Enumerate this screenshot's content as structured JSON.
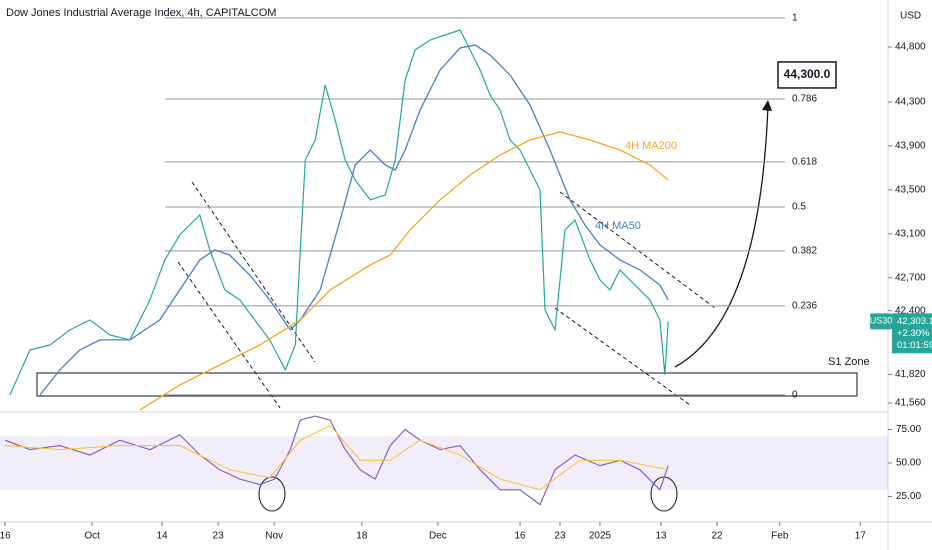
{
  "chart_data": {
    "type": "line",
    "title": "Dow Jones Industrial Average Index, 4h, CAPITALCOM",
    "currency": "USD",
    "xlim": [
      0,
      160
    ],
    "xticks": [
      {
        "value": 0.9,
        "label": "16"
      },
      {
        "value": 16.6,
        "label": "Oct"
      },
      {
        "value": 29.2,
        "label": "14"
      },
      {
        "value": 39.3,
        "label": "23"
      },
      {
        "value": 49.4,
        "label": "Nov"
      },
      {
        "value": 65.2,
        "label": "18"
      },
      {
        "value": 78.9,
        "label": "Dec"
      },
      {
        "value": 93.7,
        "label": "16"
      },
      {
        "value": 100.9,
        "label": "23"
      },
      {
        "value": 108.1,
        "label": "2025"
      },
      {
        "value": 119.1,
        "label": "13"
      },
      {
        "value": 129.2,
        "label": "22"
      },
      {
        "value": 140.5,
        "label": "Feb"
      },
      {
        "value": 155.0,
        "label": "17"
      }
    ],
    "ylim": [
      41496,
      45228
    ],
    "yticks": [
      {
        "value": 44800,
        "label": "44,800"
      },
      {
        "value": 44300,
        "label": "44,300"
      },
      {
        "value": 43900,
        "label": "43,900"
      },
      {
        "value": 43500,
        "label": "43,500"
      },
      {
        "value": 43100,
        "label": "43,100"
      },
      {
        "value": 42700,
        "label": "42,700"
      },
      {
        "value": 42400,
        "label": "42,400"
      },
      {
        "value": 41820,
        "label": "41,820"
      },
      {
        "value": 41560,
        "label": "41,560"
      }
    ],
    "series": [
      {
        "name": "US30",
        "color": "#26a69a",
        "x": [
          1.8,
          5.4,
          9.0,
          12.6,
          16.2,
          19.8,
          23.4,
          27.0,
          29.7,
          32.4,
          36.0,
          37.8,
          40.5,
          43.2,
          45.9,
          48.6,
          51.4,
          53.2,
          54.1,
          55.0,
          56.8,
          58.6,
          60.4,
          62.2,
          64.0,
          66.7,
          69.4,
          71.2,
          73.0,
          74.8,
          77.5,
          80.2,
          82.9,
          84.7,
          86.5,
          88.3,
          90.1,
          91.9,
          93.7,
          95.5,
          97.3,
          98.2,
          100.0,
          101.8,
          103.6,
          106.3,
          108.1,
          109.9,
          111.7,
          113.5,
          115.3,
          117.1,
          118.9,
          119.8,
          120.4
        ],
        "values": [
          41633,
          42043,
          42088,
          42225,
          42316,
          42179,
          42134,
          42498,
          42862,
          43089,
          43271,
          42953,
          42589,
          42498,
          42316,
          42134,
          41861,
          42088,
          42953,
          43772,
          43954,
          44454,
          44136,
          43772,
          43590,
          43408,
          43453,
          43772,
          44500,
          44773,
          44864,
          44909,
          44955,
          44773,
          44591,
          44363,
          44227,
          43954,
          43863,
          43681,
          43499,
          42407,
          42225,
          43135,
          43226,
          42862,
          42680,
          42589,
          42771,
          42680,
          42589,
          42498,
          42316,
          41815,
          42303
        ]
      },
      {
        "name": "4H MA50",
        "color": "#4a7fc1",
        "x": [
          7.2,
          10.8,
          14.4,
          18.0,
          23.4,
          28.8,
          32.4,
          36.0,
          38.7,
          41.4,
          45.0,
          48.6,
          52.3,
          54.1,
          57.7,
          61.3,
          64.0,
          66.7,
          69.4,
          71.2,
          73.0,
          75.7,
          79.3,
          82.9,
          85.6,
          88.3,
          91.9,
          95.5,
          99.1,
          102.7,
          105.4,
          108.1,
          111.7,
          115.3,
          118.9,
          120.4
        ],
        "values": [
          41633,
          41861,
          42043,
          42134,
          42134,
          42316,
          42589,
          42862,
          42953,
          42907,
          42725,
          42498,
          42225,
          42316,
          42589,
          43226,
          43726,
          43863,
          43726,
          43681,
          43863,
          44227,
          44591,
          44791,
          44818,
          44727,
          44545,
          44272,
          43863,
          43408,
          43180,
          42998,
          42862,
          42771,
          42634,
          42498
        ]
      },
      {
        "name": "4H MA200",
        "color": "#f5a623",
        "x": [
          25.2,
          32.4,
          39.6,
          46.8,
          54.1,
          59.5,
          66.7,
          70.3,
          73.9,
          79.3,
          84.7,
          90.1,
          95.5,
          100.9,
          106.3,
          111.7,
          117.1,
          120.4
        ],
        "values": [
          41497,
          41724,
          41906,
          42088,
          42316,
          42589,
          42816,
          42907,
          43135,
          43408,
          43635,
          43817,
          43954,
          44027,
          43954,
          43863,
          43726,
          43590
        ]
      }
    ],
    "last_price": {
      "value": 42303.1,
      "label": "42,303.1"
    },
    "change": "+2.30%",
    "countdown": "01:01:59",
    "fib_levels": [
      {
        "ratio": 1,
        "price": 45064
      },
      {
        "ratio": 0.786,
        "price": 44327
      },
      {
        "ratio": 0.618,
        "price": 43754
      },
      {
        "ratio": 0.5,
        "price": 43344
      },
      {
        "ratio": 0.382,
        "price": 42944
      },
      {
        "ratio": 0.236,
        "price": 42444
      },
      {
        "ratio": 0,
        "price": 41634
      }
    ],
    "target": {
      "value": 44300,
      "label": "44,300.0"
    },
    "zone_label": "S1 Zone",
    "rsi": {
      "ylim": [
        7.5,
        85.8
      ],
      "yticks": [
        {
          "value": 75,
          "label": "75.00"
        },
        {
          "value": 50,
          "label": "50.00"
        },
        {
          "value": 25,
          "label": "25.00"
        }
      ],
      "band": [
        30,
        70
      ],
      "series": [
        {
          "color": "#7e57c2",
          "x": [
            0.9,
            5.4,
            10.8,
            16.2,
            21.6,
            27.0,
            32.4,
            36.0,
            39.6,
            43.2,
            46.8,
            49.5,
            52.3,
            54.1,
            56.8,
            59.5,
            62.2,
            64.9,
            67.6,
            70.3,
            73.0,
            75.7,
            79.3,
            82.9,
            86.5,
            90.1,
            93.7,
            97.3,
            100.0,
            103.6,
            108.1,
            111.7,
            115.3,
            118.9,
            120.4
          ],
          "values": [
            67,
            60,
            63,
            56,
            67,
            60,
            71,
            56,
            45,
            38,
            34,
            38,
            60,
            82,
            85,
            82,
            60,
            45,
            38,
            63,
            75,
            67,
            60,
            63,
            45,
            30,
            30,
            19,
            45,
            56,
            48,
            52,
            45,
            30,
            48
          ]
        },
        {
          "color": "#f5c542",
          "x": [
            0.9,
            10.8,
            21.6,
            32.4,
            41.4,
            48.6,
            54.1,
            59.5,
            64.9,
            70.3,
            75.7,
            82.9,
            90.1,
            97.3,
            104.5,
            111.7,
            120.4
          ],
          "values": [
            63,
            60,
            63,
            63,
            45,
            39,
            67,
            78,
            52,
            52,
            67,
            56,
            38,
            30,
            52,
            52,
            45
          ]
        }
      ]
    }
  }
}
